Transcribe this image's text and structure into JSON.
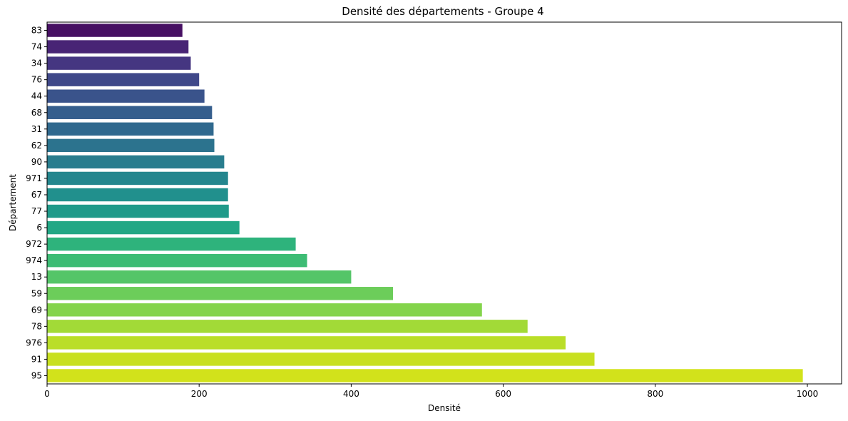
{
  "chart_data": {
    "type": "bar",
    "orientation": "horizontal",
    "title": "Densité des départements - Groupe 4",
    "xlabel": "Densité",
    "ylabel": "Département",
    "xlim": [
      0,
      1045
    ],
    "xticks": [
      0,
      200,
      400,
      600,
      800,
      1000
    ],
    "grid": false,
    "categories": [
      "83",
      "74",
      "34",
      "76",
      "44",
      "68",
      "31",
      "62",
      "90",
      "971",
      "67",
      "77",
      "6",
      "972",
      "974",
      "13",
      "59",
      "69",
      "78",
      "976",
      "91",
      "95"
    ],
    "values": [
      178,
      186,
      189,
      200,
      207,
      217,
      219,
      220,
      233,
      238,
      238,
      239,
      253,
      327,
      342,
      400,
      455,
      572,
      632,
      682,
      720,
      994
    ],
    "colors": [
      "#471063",
      "#482475",
      "#453681",
      "#3f4889",
      "#3a538b",
      "#355e8d",
      "#30698e",
      "#2c738e",
      "#287d8e",
      "#24868e",
      "#21908d",
      "#1f9a8a",
      "#22a785",
      "#2eb37c",
      "#3dbc74",
      "#54c568",
      "#6ccd5a",
      "#84d44b",
      "#a2da37",
      "#bade28",
      "#c8e020",
      "#d2e21b"
    ]
  }
}
